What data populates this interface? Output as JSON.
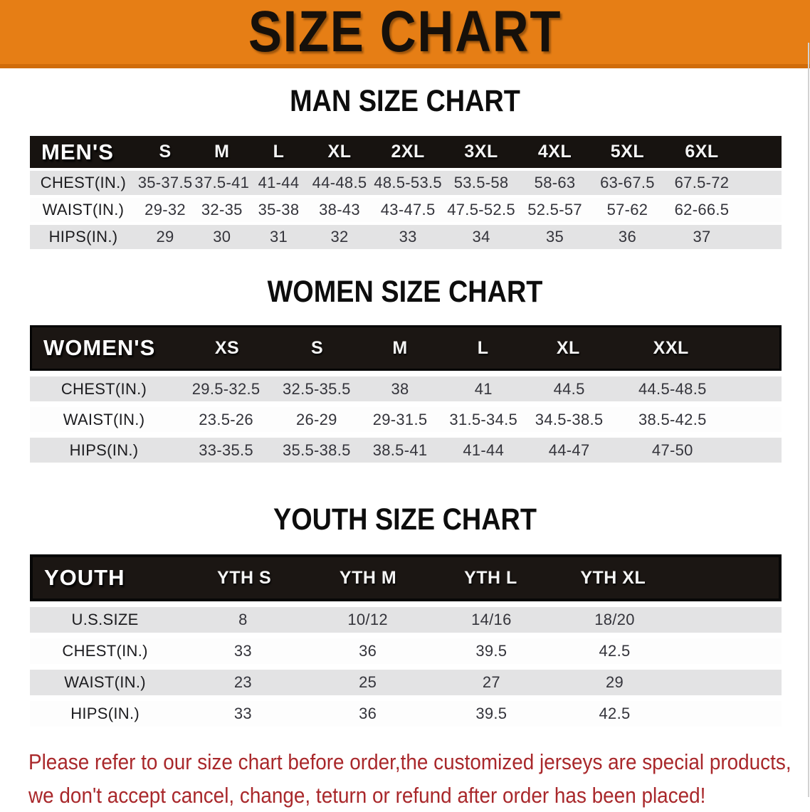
{
  "banner": {
    "title": "SIZE CHART"
  },
  "colors": {
    "banner_bg": "#e67e15",
    "banner_edge": "#d06c0a",
    "header_bar": "#171310",
    "row_gray": "#e3e3e4",
    "row_white": "#fdfdfd",
    "disclaimer_red": "#a9282b"
  },
  "men": {
    "heading": "MAN SIZE CHART",
    "label": "MEN'S",
    "sizes": [
      "S",
      "M",
      "L",
      "XL",
      "2XL",
      "3XL",
      "4XL",
      "5XL",
      "6XL"
    ],
    "rows": [
      {
        "label": "CHEST(IN.)",
        "values": [
          "35-37.5",
          "37.5-41",
          "41-44",
          "44-48.5",
          "48.5-53.5",
          "53.5-58",
          "58-63",
          "63-67.5",
          "67.5-72"
        ]
      },
      {
        "label": "WAIST(IN.)",
        "values": [
          "29-32",
          "32-35",
          "35-38",
          "38-43",
          "43-47.5",
          "47.5-52.5",
          "52.5-57",
          "57-62",
          "62-66.5"
        ]
      },
      {
        "label": "HIPS(IN.)",
        "values": [
          "29",
          "30",
          "31",
          "32",
          "33",
          "34",
          "35",
          "36",
          "37"
        ]
      }
    ]
  },
  "women": {
    "heading": "WOMEN SIZE CHART",
    "label": "WOMEN'S",
    "sizes": [
      "XS",
      "S",
      "M",
      "L",
      "XL",
      "XXL"
    ],
    "rows": [
      {
        "label": "CHEST(IN.)",
        "values": [
          "29.5-32.5",
          "32.5-35.5",
          "38",
          "41",
          "44.5",
          "44.5-48.5"
        ]
      },
      {
        "label": "WAIST(IN.)",
        "values": [
          "23.5-26",
          "26-29",
          "29-31.5",
          "31.5-34.5",
          "34.5-38.5",
          "38.5-42.5"
        ]
      },
      {
        "label": "HIPS(IN.)",
        "values": [
          "33-35.5",
          "35.5-38.5",
          "38.5-41",
          "41-44",
          "44-47",
          "47-50"
        ]
      }
    ]
  },
  "youth": {
    "heading": "YOUTH SIZE CHART",
    "label": "YOUTH",
    "sizes": [
      "YTH S",
      "YTH M",
      "YTH L",
      "YTH XL"
    ],
    "rows": [
      {
        "label": "U.S.SIZE",
        "values": [
          "8",
          "10/12",
          "14/16",
          "18/20"
        ]
      },
      {
        "label": "CHEST(IN.)",
        "values": [
          "33",
          "36",
          "39.5",
          "42.5"
        ]
      },
      {
        "label": "WAIST(IN.)",
        "values": [
          "23",
          "25",
          "27",
          "29"
        ]
      },
      {
        "label": "HIPS(IN.)",
        "values": [
          "33",
          "36",
          "39.5",
          "42.5"
        ]
      }
    ]
  },
  "disclaimer": {
    "line1": "Please refer to our size chart before order,the customized jerseys are special products,",
    "line2": "we don't accept cancel, change, teturn or refund after order has been placed!"
  }
}
